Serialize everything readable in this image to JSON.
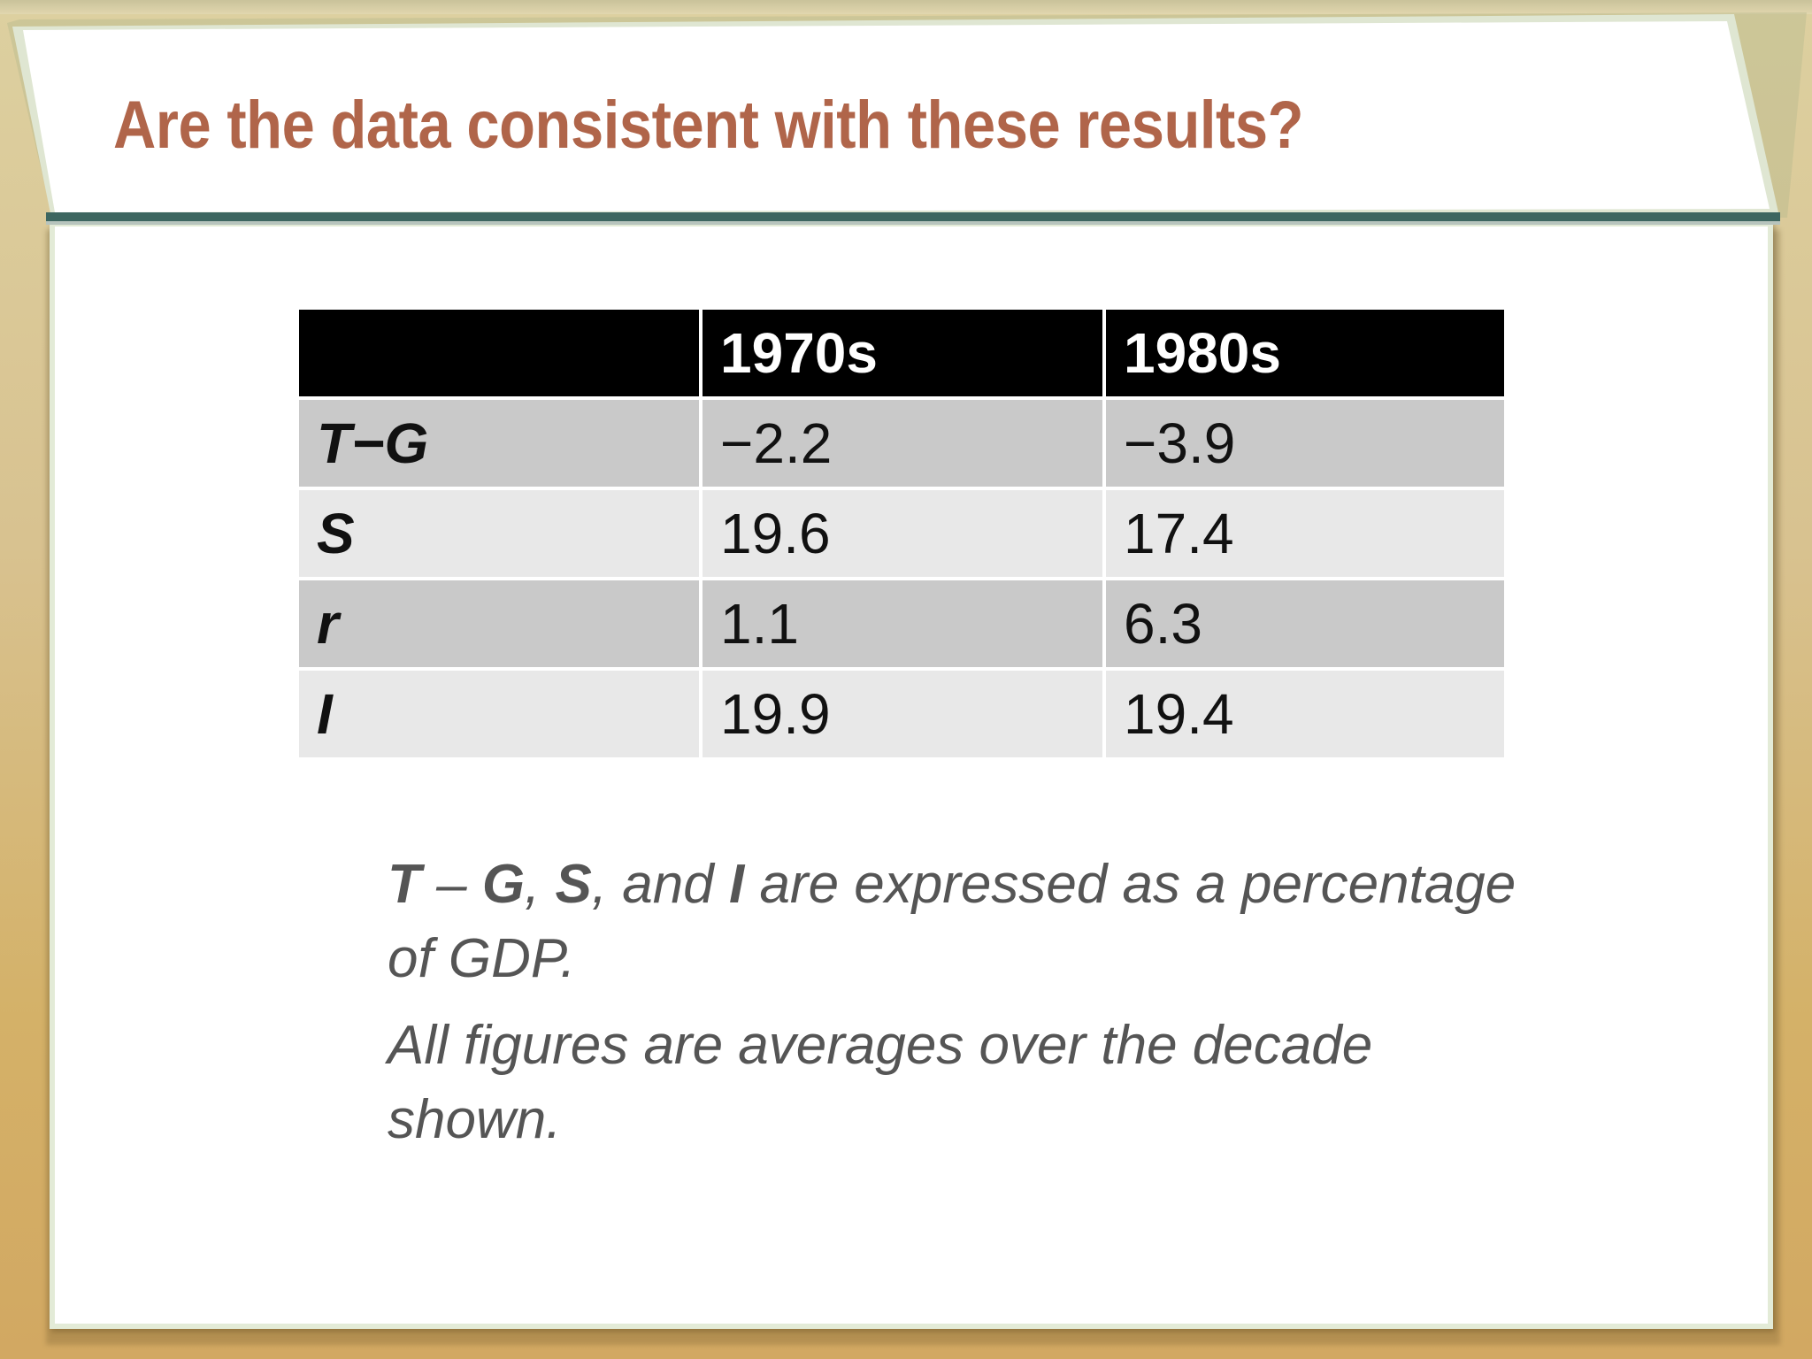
{
  "slide": {
    "title": "Are the data consistent with these results?"
  },
  "table": {
    "header": [
      "",
      "1970s",
      "1980s"
    ],
    "rows": [
      {
        "label": "T−G",
        "v1970s": "−2.2",
        "v1980s": "−3.9"
      },
      {
        "label": "S",
        "v1970s": "19.6",
        "v1980s": "17.4"
      },
      {
        "label": "r",
        "v1970s": "1.1",
        "v1980s": "6.3"
      },
      {
        "label": "I",
        "v1970s": "19.9",
        "v1980s": "19.4"
      }
    ]
  },
  "notes": {
    "note1": {
      "t": "T",
      "dash": " – ",
      "g": "G",
      "comma1": ", ",
      "s": "S",
      "and_text": ", and ",
      "i": "I",
      "rest": " are expressed as a percentage of GDP."
    },
    "note2": "All figures are averages over the decade shown."
  },
  "colors": {
    "title": "#b0654a",
    "header_bg": "#000000",
    "row_dark": "#c9c9c9",
    "row_light": "#e8e8e8",
    "note_text": "#555555",
    "banner_rule": "#3d6660",
    "background_gold": "#d4b168"
  }
}
